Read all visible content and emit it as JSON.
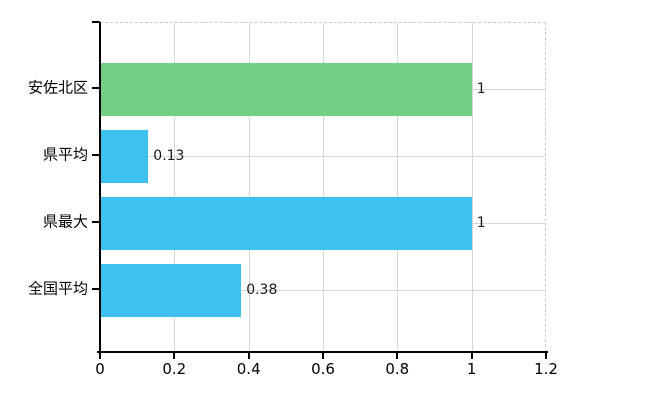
{
  "chart_data": {
    "type": "bar",
    "orientation": "horizontal",
    "title": "",
    "xlabel": "",
    "ylabel": "",
    "categories": [
      "安佐北区",
      "県平均",
      "県最大",
      "全国平均"
    ],
    "values": [
      1,
      0.13,
      1,
      0.38
    ],
    "value_labels": [
      "1",
      "0.13",
      "1",
      "0.38"
    ],
    "bar_colors": [
      "#72cf85",
      "#3fc1ef",
      "#3fc1ef",
      "#3fc1ef"
    ],
    "xlim": [
      0,
      1.2
    ],
    "x_ticks": [
      0,
      0.2,
      0.4,
      0.6,
      0.8,
      1,
      1.2
    ],
    "x_tick_labels": [
      "0",
      "0.2",
      "0.4",
      "0.6",
      "0.8",
      "1",
      "1.2"
    ],
    "grid": "on",
    "legend": "none"
  },
  "colors": {
    "background": "#ffffff",
    "axis": "#000000",
    "gridline": "#d6d6d6",
    "plot_border_dashed": "#c9c9c9",
    "label_text": "#1a1a1a",
    "green_bar": "#72cf85",
    "blue_bar": "#3fc1ef"
  }
}
